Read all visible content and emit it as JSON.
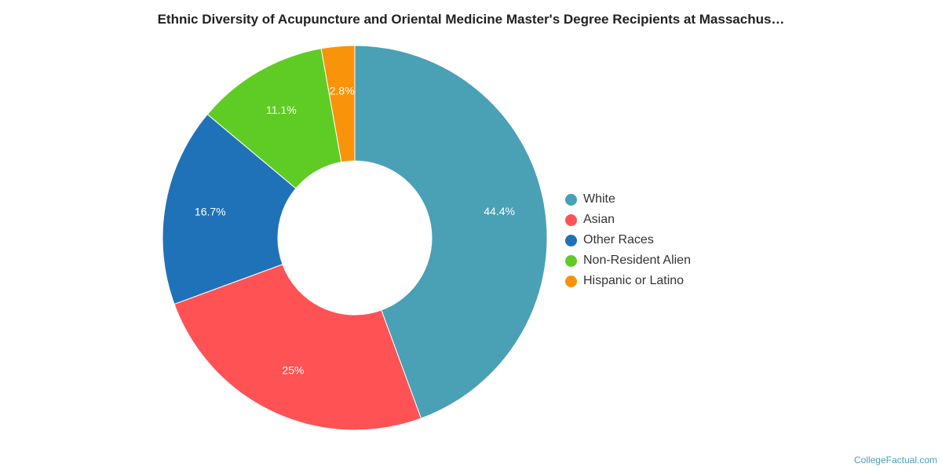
{
  "chart_data": {
    "type": "pie",
    "title": "Ethnic Diversity of Acupuncture and Oriental Medicine Master's Degree Recipients at Massachus…",
    "categories": [
      "White",
      "Asian",
      "Other Races",
      "Non-Resident Alien",
      "Hispanic or Latino"
    ],
    "values": [
      44.4,
      25,
      16.7,
      11.1,
      2.8
    ],
    "labels": [
      "44.4%",
      "25%",
      "16.7%",
      "11.1%",
      "2.8%"
    ],
    "colors": [
      "#4aa0b5",
      "#fe5254",
      "#1f72b8",
      "#5fcc26",
      "#f8930a"
    ],
    "donut": true,
    "legend_position": "right"
  },
  "credit": "CollegeFactual.com"
}
